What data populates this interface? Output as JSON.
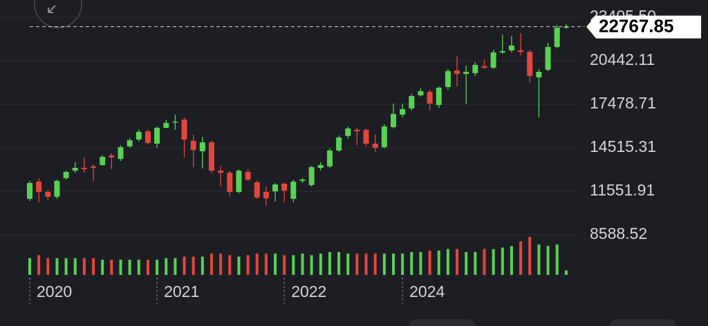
{
  "chart_data": {
    "type": "candlestick",
    "categories": [
      "2020",
      null,
      null,
      null,
      null,
      null,
      null,
      null,
      null,
      null,
      null,
      null,
      null,
      null,
      "2021",
      null,
      null,
      null,
      null,
      null,
      null,
      null,
      null,
      null,
      null,
      null,
      null,
      null,
      "2022",
      null,
      null,
      null,
      null,
      null,
      null,
      null,
      null,
      null,
      null,
      null,
      null,
      "2024",
      null,
      null,
      null,
      null,
      null,
      null,
      null,
      null,
      null,
      null,
      null,
      null,
      null,
      null,
      null,
      null,
      null,
      null
    ],
    "open": [
      11040,
      12210,
      11510,
      11180,
      12450,
      12960,
      13150,
      13250,
      13340,
      14000,
      13760,
      14610,
      15080,
      15640,
      14800,
      15880,
      16260,
      16440,
      14990,
      14280,
      14890,
      12960,
      12820,
      11510,
      12870,
      12160,
      11510,
      11550,
      12070,
      11040,
      12260,
      11980,
      13150,
      13250,
      14330,
      15320,
      15740,
      15740,
      14800,
      14560,
      15930,
      16770,
      17200,
      18090,
      18330,
      17430,
      18660,
      19780,
      19550,
      19600,
      20070,
      19970,
      21010,
      21150,
      21150,
      21050,
      19310,
      19830,
      21380,
      22700
    ],
    "high": [
      12260,
      12450,
      11650,
      12350,
      12960,
      13530,
      13860,
      13390,
      14000,
      14140,
      14700,
      15170,
      15740,
      15740,
      15970,
      16440,
      16770,
      16590,
      15410,
      15270,
      14990,
      13290,
      12920,
      13060,
      13060,
      12260,
      11880,
      12120,
      12160,
      12350,
      12450,
      13290,
      13530,
      14470,
      15360,
      15970,
      15880,
      15830,
      15410,
      16120,
      17530,
      17530,
      18190,
      18560,
      18470,
      18700,
      19880,
      20730,
      20110,
      20350,
      20540,
      21190,
      22230,
      22140,
      22320,
      21190,
      19880,
      21670,
      22890,
      22940
    ],
    "low": [
      10890,
      10800,
      10940,
      11040,
      12350,
      12820,
      12820,
      12260,
      13290,
      13060,
      13620,
      14520,
      14940,
      14750,
      14520,
      15830,
      15740,
      13860,
      13200,
      13100,
      12820,
      11880,
      11180,
      11410,
      12260,
      11040,
      10560,
      10850,
      10800,
      10800,
      12120,
      11880,
      12960,
      13150,
      14230,
      15130,
      14700,
      14610,
      14230,
      14470,
      15830,
      16590,
      17060,
      18000,
      17060,
      17240,
      18470,
      18700,
      17530,
      19410,
      19880,
      19880,
      20910,
      21010,
      20820,
      18940,
      16590,
      19740,
      21290,
      22610
    ],
    "close": [
      12120,
      11510,
      11180,
      12260,
      12870,
      13150,
      13060,
      13150,
      13900,
      13860,
      14560,
      15030,
      15600,
      14850,
      15880,
      16210,
      16300,
      15080,
      14370,
      14890,
      12960,
      12820,
      11510,
      12960,
      12350,
      11130,
      11080,
      12020,
      11600,
      12210,
      12350,
      13200,
      13340,
      14330,
      15220,
      15830,
      15640,
      14800,
      14520,
      15970,
      16820,
      17150,
      18040,
      18370,
      17530,
      18610,
      19740,
      19550,
      19690,
      20160,
      19970,
      21010,
      21100,
      21480,
      21050,
      19410,
      19690,
      21380,
      22700,
      22767.85
    ],
    "volume": [
      22,
      26,
      22,
      22,
      22,
      22,
      22,
      22,
      20,
      20,
      20,
      20,
      20,
      20,
      20,
      22,
      22,
      24,
      24,
      24,
      28,
      28,
      26,
      24,
      26,
      28,
      28,
      28,
      26,
      26,
      28,
      26,
      28,
      30,
      30,
      28,
      28,
      28,
      28,
      28,
      28,
      28,
      30,
      30,
      32,
      32,
      34,
      34,
      30,
      30,
      34,
      34,
      36,
      38,
      44,
      50,
      40,
      38,
      40,
      6
    ],
    "up_color": "#58d254",
    "down_color": "#e5463b",
    "ylim": [
      8118,
      24582
    ],
    "yticks": [
      8588.52,
      11551.91,
      14515.31,
      17478.71,
      20442.11,
      {
        "value": 23405.5,
        "label": "23405.50"
      }
    ],
    "grid": true,
    "last_price": 22767.85
  }
}
